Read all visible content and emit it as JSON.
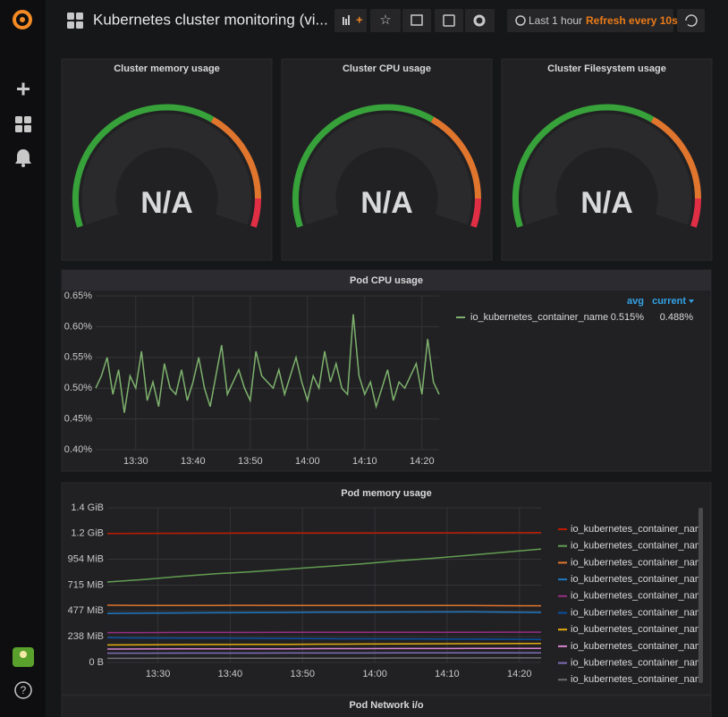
{
  "header": {
    "title": "Kubernetes cluster monitoring (vi...",
    "time_range": "Last 1 hour",
    "refresh": "Refresh every 10s"
  },
  "gauges": [
    {
      "title": "Cluster memory usage",
      "value": "N/A"
    },
    {
      "title": "Cluster CPU usage",
      "value": "N/A"
    },
    {
      "title": "Cluster Filesystem usage",
      "value": "N/A"
    }
  ],
  "cpu_panel": {
    "type": "line",
    "title": "Pod CPU usage",
    "x": [
      "13:23",
      "13:24",
      "13:25",
      "13:26",
      "13:27",
      "13:28",
      "13:29",
      "13:30",
      "13:31",
      "13:32",
      "13:33",
      "13:34",
      "13:35",
      "13:36",
      "13:37",
      "13:38",
      "13:39",
      "13:40",
      "13:41",
      "13:42",
      "13:43",
      "13:44",
      "13:45",
      "13:46",
      "13:47",
      "13:48",
      "13:49",
      "13:50",
      "13:51",
      "13:52",
      "13:53",
      "13:54",
      "13:55",
      "13:56",
      "13:57",
      "13:58",
      "13:59",
      "14:00",
      "14:01",
      "14:02",
      "14:03",
      "14:04",
      "14:05",
      "14:06",
      "14:07",
      "14:08",
      "14:09",
      "14:10",
      "14:11",
      "14:12",
      "14:13",
      "14:14",
      "14:15",
      "14:16",
      "14:17",
      "14:18",
      "14:19",
      "14:20",
      "14:21",
      "14:22",
      "14:23"
    ],
    "xlim": [
      "13:23",
      "14:23"
    ],
    "xticks": [
      "13:30",
      "13:40",
      "13:50",
      "14:00",
      "14:10",
      "14:20"
    ],
    "ylim": [
      0.4,
      0.65
    ],
    "yticks": [
      {
        "value": 0.4,
        "label": "0.40%"
      },
      {
        "value": 0.45,
        "label": "0.45%"
      },
      {
        "value": 0.5,
        "label": "0.50%"
      },
      {
        "value": 0.55,
        "label": "0.55%"
      },
      {
        "value": 0.6,
        "label": "0.60%"
      },
      {
        "value": 0.65,
        "label": "0.65%"
      }
    ],
    "legend_columns": [
      "avg",
      "current"
    ],
    "series": [
      {
        "name": "io_kubernetes_container_name",
        "color": "#7eb26d",
        "avg": "0.515%",
        "current": "0.488%",
        "values": [
          0.5,
          0.52,
          0.55,
          0.49,
          0.53,
          0.46,
          0.52,
          0.5,
          0.56,
          0.48,
          0.51,
          0.47,
          0.54,
          0.5,
          0.49,
          0.53,
          0.48,
          0.51,
          0.55,
          0.5,
          0.47,
          0.52,
          0.57,
          0.49,
          0.51,
          0.53,
          0.5,
          0.48,
          0.56,
          0.52,
          0.51,
          0.5,
          0.53,
          0.49,
          0.52,
          0.55,
          0.51,
          0.48,
          0.52,
          0.5,
          0.56,
          0.51,
          0.54,
          0.5,
          0.49,
          0.62,
          0.52,
          0.49,
          0.51,
          0.47,
          0.5,
          0.53,
          0.48,
          0.51,
          0.5,
          0.52,
          0.54,
          0.49,
          0.58,
          0.51,
          0.49
        ]
      }
    ]
  },
  "memory_panel": {
    "type": "line",
    "title": "Pod memory usage",
    "x": [
      "13:23",
      "13:28",
      "13:33",
      "13:38",
      "13:43",
      "13:48",
      "13:53",
      "13:58",
      "14:03",
      "14:08",
      "14:13",
      "14:18",
      "14:23"
    ],
    "xlim": [
      "13:23",
      "14:23"
    ],
    "xticks": [
      "13:30",
      "13:40",
      "13:50",
      "14:00",
      "14:10",
      "14:20"
    ],
    "ylim": [
      0,
      1500000000
    ],
    "yticks": [
      {
        "value": 0,
        "label": "0 B"
      },
      {
        "value": 250000000,
        "label": "238 MiB"
      },
      {
        "value": 500000000,
        "label": "477 MiB"
      },
      {
        "value": 750000000,
        "label": "715 MiB"
      },
      {
        "value": 1000000000,
        "label": "954 MiB"
      },
      {
        "value": 1250000000,
        "label": "1.2 GiB"
      },
      {
        "value": 1500000000,
        "label": "1.4 GiB"
      }
    ],
    "series": [
      {
        "name": "io_kubernetes_container_name",
        "color": "#bf1b00",
        "values": [
          1250000000,
          1252000000,
          1253000000,
          1254000000,
          1255000000,
          1255000000,
          1256000000,
          1256000000,
          1257000000,
          1257000000,
          1258000000,
          1258000000,
          1259000000
        ]
      },
      {
        "name": "io_kubernetes_container_name",
        "color": "#629e51",
        "values": [
          780000000,
          805000000,
          835000000,
          860000000,
          880000000,
          905000000,
          930000000,
          955000000,
          985000000,
          1010000000,
          1040000000,
          1070000000,
          1100000000
        ]
      },
      {
        "name": "io_kubernetes_container_name",
        "color": "#e0752d",
        "values": [
          555000000,
          553000000,
          552000000,
          553000000,
          554000000,
          553000000,
          552000000,
          553000000,
          552000000,
          553000000,
          552000000,
          551000000,
          550000000
        ]
      },
      {
        "name": "io_kubernetes_container_name",
        "color": "#1f78c1",
        "values": [
          475000000,
          478000000,
          480000000,
          482000000,
          484000000,
          485000000,
          487000000,
          488000000,
          489000000,
          490000000,
          491000000,
          488000000,
          485000000
        ]
      },
      {
        "name": "io_kubernetes_container_name",
        "color": "#962d82",
        "values": [
          290000000,
          290000000,
          291000000,
          291000000,
          291000000,
          292000000,
          292000000,
          292000000,
          293000000,
          293000000,
          293000000,
          294000000,
          294000000
        ]
      },
      {
        "name": "io_kubernetes_container_name",
        "color": "#0a50a1",
        "values": [
          240000000,
          238000000,
          236000000,
          235000000,
          234000000,
          232000000,
          231000000,
          230000000,
          229000000,
          228000000,
          226000000,
          225000000,
          224000000
        ]
      },
      {
        "name": "io_kubernetes_container_name",
        "color": "#e5ac0e",
        "values": [
          170000000,
          172000000,
          173000000,
          174000000,
          175000000,
          176000000,
          178000000,
          179000000,
          180000000,
          181000000,
          182000000,
          183000000,
          184000000
        ]
      },
      {
        "name": "io_kubernetes_container_name",
        "color": "#d683ce",
        "values": [
          130000000,
          131000000,
          132000000,
          132000000,
          133000000,
          133000000,
          134000000,
          134000000,
          135000000,
          135000000,
          136000000,
          136000000,
          137000000
        ]
      },
      {
        "name": "io_kubernetes_container_name",
        "color": "#806eb7",
        "values": [
          90000000,
          90000000,
          91000000,
          91000000,
          91000000,
          92000000,
          92000000,
          92000000,
          93000000,
          93000000,
          93000000,
          94000000,
          94000000
        ]
      },
      {
        "name": "io_kubernetes_container_name",
        "color": "#6d6d70",
        "values": [
          40000000,
          40000000,
          41000000,
          41000000,
          41000000,
          42000000,
          42000000,
          42000000,
          43000000,
          43000000,
          43000000,
          44000000,
          44000000
        ]
      }
    ]
  },
  "network_panel": {
    "title": "Pod Network i/o"
  }
}
